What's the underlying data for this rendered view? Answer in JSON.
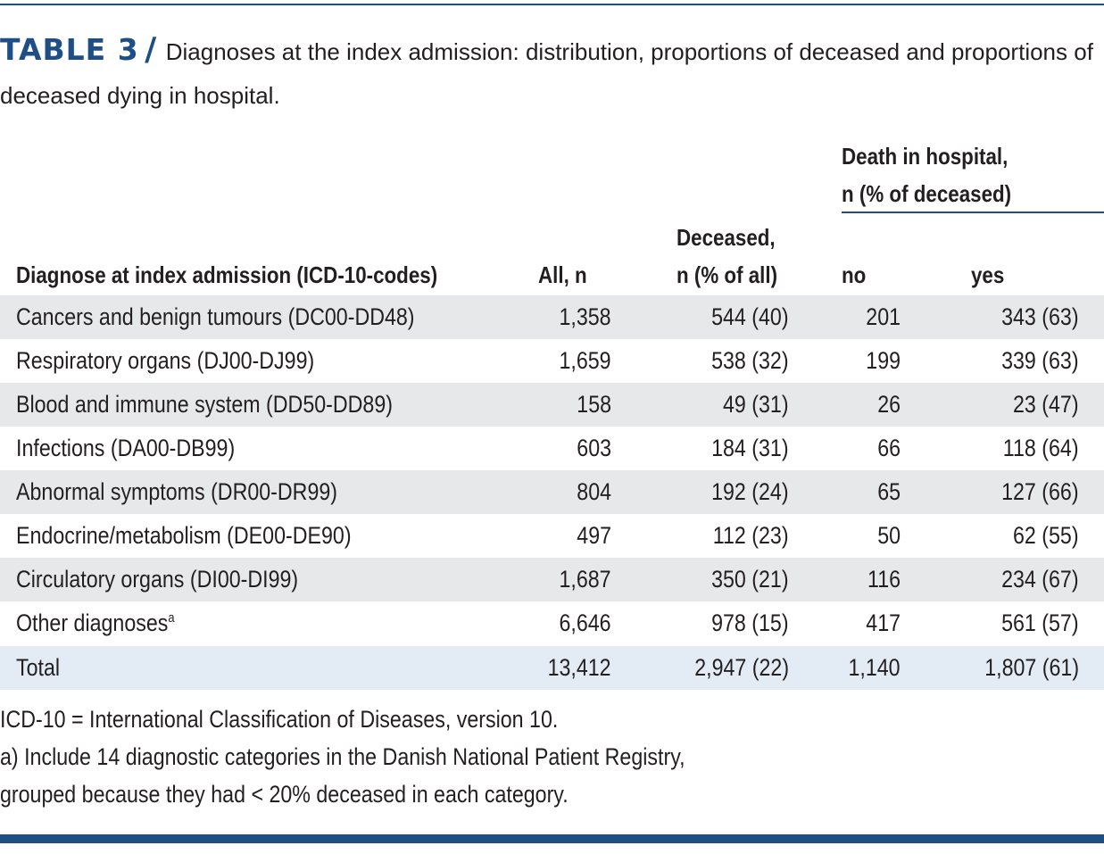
{
  "caption": {
    "label": "TABLE 3",
    "slash": "/",
    "text": "Diagnoses at the index admission: distribution, proportions of deceased and proportions of deceased dying in hospital."
  },
  "header": {
    "diagnose": "Diagnose at index admission (ICD-10-codes)",
    "all": "All, n",
    "deceased_line1": "Deceased,",
    "deceased_line2": "n (% of all)",
    "death_line1": "Death in hospital,",
    "death_line2": "n (% of deceased)",
    "no": "no",
    "yes": "yes"
  },
  "rows": [
    {
      "diagnose": "Cancers and benign tumours (DC00-DD48)",
      "all": "1,358",
      "deceased": "544 (40)",
      "no": "201",
      "yes": "343 (63)"
    },
    {
      "diagnose": "Respiratory organs (DJ00-DJ99)",
      "all": "1,659",
      "deceased": "538 (32)",
      "no": "199",
      "yes": "339 (63)"
    },
    {
      "diagnose": "Blood and immune system (DD50-DD89)",
      "all": "158",
      "deceased": "49 (31)",
      "no": "26",
      "yes": "23 (47)"
    },
    {
      "diagnose": "Infections (DA00-DB99)",
      "all": "603",
      "deceased": "184 (31)",
      "no": "66",
      "yes": "118 (64)"
    },
    {
      "diagnose": "Abnormal symptoms (DR00-DR99)",
      "all": "804",
      "deceased": "192 (24)",
      "no": "65",
      "yes": "127 (66)"
    },
    {
      "diagnose": "Endocrine/metabolism (DE00-DE90)",
      "all": "497",
      "deceased": "112 (23)",
      "no": "50",
      "yes": "62 (55)"
    },
    {
      "diagnose": "Circulatory organs (DI00-DI99)",
      "all": "1,687",
      "deceased": "350 (21)",
      "no": "116",
      "yes": "234 (67)"
    },
    {
      "diagnose": "Other diagnoses",
      "footnote": "a",
      "all": "6,646",
      "deceased": "978 (15)",
      "no": "417",
      "yes": "561 (57)"
    },
    {
      "diagnose": "Total",
      "all": "13,412",
      "deceased": "2,947 (22)",
      "no": "1,140",
      "yes": "1,807 (61)"
    }
  ],
  "notes": [
    "ICD-10 = International Classification of Diseases, version 10.",
    "a) Include 14 diagnostic categories in the Danish National Patient Registry,",
    "grouped because they had < 20% deceased in each category."
  ],
  "colors": {
    "accent": "#1d4f86",
    "row_shade": "#e7e8ea",
    "total_shade": "#e3ecf4"
  }
}
